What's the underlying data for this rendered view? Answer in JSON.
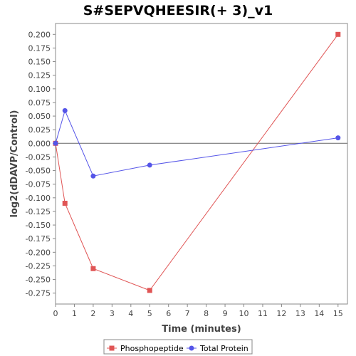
{
  "chart_data": {
    "type": "line",
    "title": "S#SEPVQHEESIR(+ 3)_v1",
    "xlabel": "Time (minutes)",
    "ylabel": "log2(dDAVP/Control)",
    "xlim": [
      0,
      15.5
    ],
    "ylim": [
      -0.295,
      0.22
    ],
    "x_ticks": [
      0,
      1,
      2,
      3,
      4,
      5,
      6,
      7,
      8,
      9,
      10,
      11,
      12,
      13,
      14,
      15
    ],
    "y_ticks": [
      -0.275,
      -0.25,
      -0.225,
      -0.2,
      -0.175,
      -0.15,
      -0.125,
      -0.1,
      -0.075,
      -0.05,
      -0.025,
      0.0,
      0.025,
      0.05,
      0.075,
      0.1,
      0.125,
      0.15,
      0.175,
      0.2
    ],
    "x_tick_labels": [
      "0",
      "1",
      "2",
      "3",
      "4",
      "5",
      "6",
      "7",
      "8",
      "9",
      "10",
      "11",
      "12",
      "13",
      "14",
      "15"
    ],
    "y_tick_labels": [
      "-0.275",
      "-0.250",
      "-0.225",
      "-0.200",
      "-0.175",
      "-0.150",
      "-0.125",
      "-0.100",
      "-0.075",
      "-0.050",
      "-0.025",
      "0.000",
      "0.025",
      "0.050",
      "0.075",
      "0.100",
      "0.125",
      "0.150",
      "0.175",
      "0.200"
    ],
    "grid": false,
    "zero_line": true,
    "legend_position": "bottom",
    "series": [
      {
        "name": "Phosphopeptide",
        "color": "#e05555",
        "marker": "square",
        "x": [
          0,
          0.5,
          2,
          5,
          15
        ],
        "y": [
          0.0,
          -0.11,
          -0.23,
          -0.27,
          0.2
        ]
      },
      {
        "name": "Total Protein",
        "color": "#5555e8",
        "marker": "circle",
        "x": [
          0,
          0.5,
          2,
          5,
          15
        ],
        "y": [
          0.0,
          0.06,
          -0.06,
          -0.04,
          0.01
        ]
      }
    ]
  }
}
